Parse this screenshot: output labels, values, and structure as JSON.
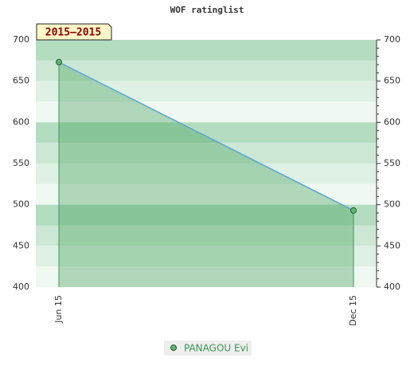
{
  "chart_data": {
    "type": "area",
    "title": "WOF ratinglist",
    "annotation": "2015–2015",
    "categories": [
      "Jun 15",
      "Dec 15"
    ],
    "series": [
      {
        "name": "PANAGOU Evi",
        "color": "#5aa6d8",
        "fill": "#3a9a50",
        "values": [
          673,
          493
        ]
      }
    ],
    "ylim": [
      400,
      700
    ],
    "yticks": [
      400,
      450,
      500,
      550,
      600,
      650,
      700
    ],
    "grid": true
  }
}
